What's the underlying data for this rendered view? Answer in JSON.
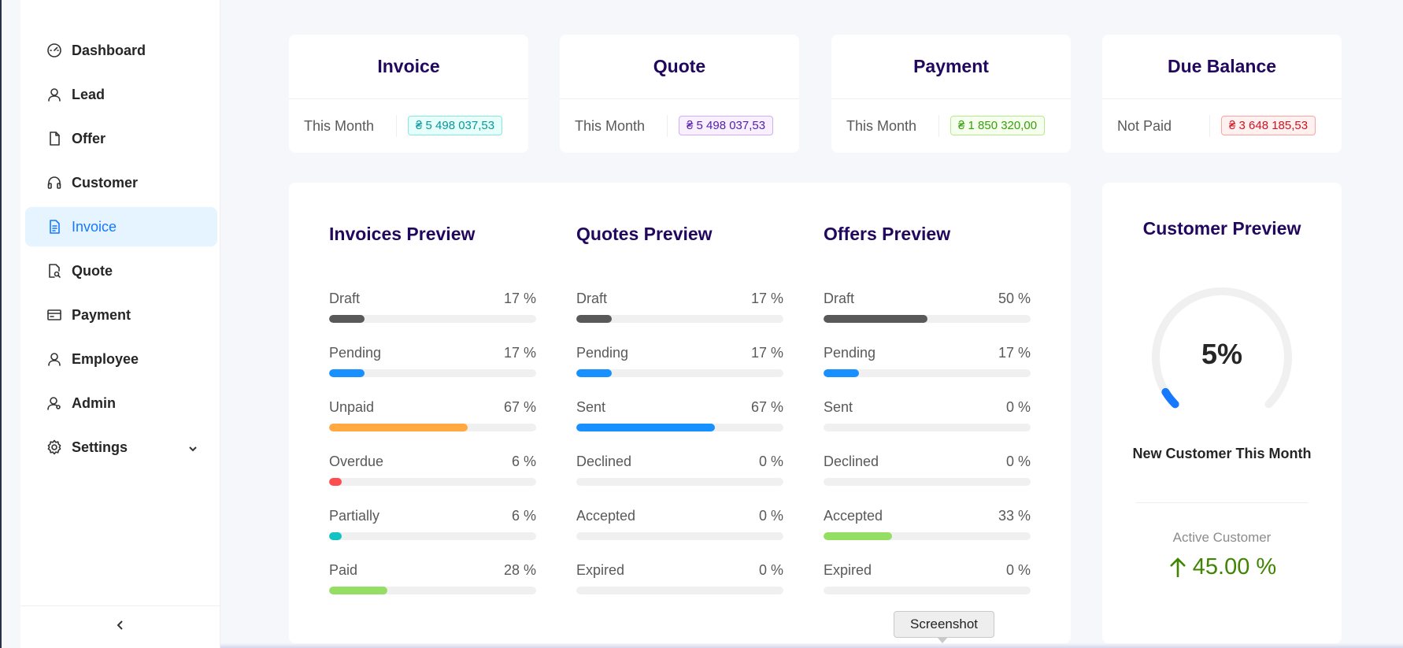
{
  "sidebar": {
    "items": [
      {
        "label": "Dashboard",
        "icon": "dashboard-icon"
      },
      {
        "label": "Lead",
        "icon": "user-icon"
      },
      {
        "label": "Offer",
        "icon": "file-icon"
      },
      {
        "label": "Customer",
        "icon": "headset-icon"
      },
      {
        "label": "Invoice",
        "icon": "file-text-icon",
        "active": true
      },
      {
        "label": "Quote",
        "icon": "file-search-icon"
      },
      {
        "label": "Payment",
        "icon": "credit-card-icon"
      },
      {
        "label": "Employee",
        "icon": "user-icon"
      },
      {
        "label": "Admin",
        "icon": "user-gear-icon"
      },
      {
        "label": "Settings",
        "icon": "gear-icon",
        "has_submenu": true
      }
    ],
    "collapse_icon": "chevron-left-icon"
  },
  "stats": [
    {
      "title": "Invoice",
      "label": "This Month",
      "value": "₴ 5 498 037,53",
      "color": "cyan"
    },
    {
      "title": "Quote",
      "label": "This Month",
      "value": "₴ 5 498 037,53",
      "color": "purple"
    },
    {
      "title": "Payment",
      "label": "This Month",
      "value": "₴ 1 850 320,00",
      "color": "green"
    },
    {
      "title": "Due Balance",
      "label": "Not Paid",
      "value": "₴ 3 648 185,53",
      "color": "red"
    }
  ],
  "colors": {
    "dark": "#595959",
    "blue": "#1890ff",
    "orange": "#ffa940",
    "red": "#ff4d4f",
    "cyan": "#13c2c2",
    "green": "#95de64",
    "accent": "#1677ff",
    "title": "#22075e"
  },
  "previews": [
    {
      "title": "Invoices Preview",
      "rows": [
        {
          "label": "Draft",
          "percent": 17,
          "value": "17 %",
          "color": "#595959"
        },
        {
          "label": "Pending",
          "percent": 17,
          "value": "17 %",
          "color": "#1890ff"
        },
        {
          "label": "Unpaid",
          "percent": 67,
          "value": "67 %",
          "color": "#ffa940"
        },
        {
          "label": "Overdue",
          "percent": 6,
          "value": "6 %",
          "color": "#ff4d4f"
        },
        {
          "label": "Partially",
          "percent": 6,
          "value": "6 %",
          "color": "#13c2c2"
        },
        {
          "label": "Paid",
          "percent": 28,
          "value": "28 %",
          "color": "#95de64"
        }
      ]
    },
    {
      "title": "Quotes Preview",
      "rows": [
        {
          "label": "Draft",
          "percent": 17,
          "value": "17 %",
          "color": "#595959"
        },
        {
          "label": "Pending",
          "percent": 17,
          "value": "17 %",
          "color": "#1890ff"
        },
        {
          "label": "Sent",
          "percent": 67,
          "value": "67 %",
          "color": "#1890ff"
        },
        {
          "label": "Declined",
          "percent": 0,
          "value": "0 %",
          "color": "#ff4d4f"
        },
        {
          "label": "Accepted",
          "percent": 0,
          "value": "0 %",
          "color": "#95de64"
        },
        {
          "label": "Expired",
          "percent": 0,
          "value": "0 %",
          "color": "#595959"
        }
      ]
    },
    {
      "title": "Offers Preview",
      "rows": [
        {
          "label": "Draft",
          "percent": 50,
          "value": "50 %",
          "color": "#595959"
        },
        {
          "label": "Pending",
          "percent": 17,
          "value": "17 %",
          "color": "#1890ff"
        },
        {
          "label": "Sent",
          "percent": 0,
          "value": "0 %",
          "color": "#1890ff"
        },
        {
          "label": "Declined",
          "percent": 0,
          "value": "0 %",
          "color": "#ff4d4f"
        },
        {
          "label": "Accepted",
          "percent": 33,
          "value": "33 %",
          "color": "#95de64"
        },
        {
          "label": "Expired",
          "percent": 0,
          "value": "0 %",
          "color": "#595959"
        }
      ]
    }
  ],
  "customer": {
    "title": "Customer Preview",
    "gauge_percent": 5,
    "gauge_text": "5%",
    "gauge_color": "#1677ff",
    "subtitle": "New Customer This Month",
    "active_label": "Active Customer",
    "active_value": "45.00 %",
    "active_icon": "arrow-up-icon",
    "active_color": "#3f8600"
  },
  "tooltip": {
    "text": "Screenshot"
  }
}
